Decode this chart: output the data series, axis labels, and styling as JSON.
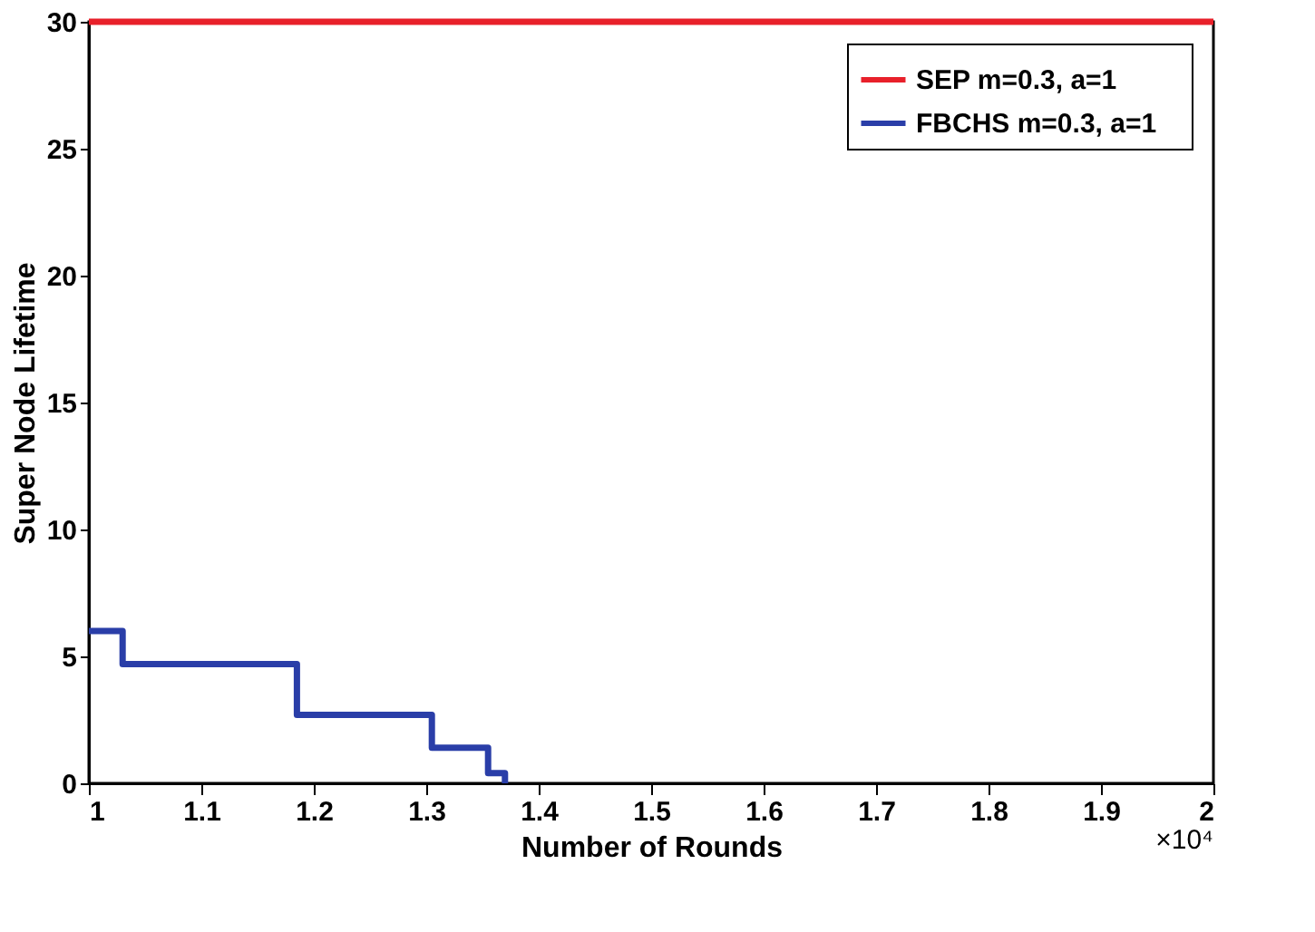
{
  "chart_data": {
    "type": "step",
    "xlabel": "Number of Rounds",
    "ylabel": "Super Node Lifetime",
    "xlim": [
      1,
      2
    ],
    "xticks": [
      1,
      1.1,
      1.2,
      1.3,
      1.4,
      1.5,
      1.6,
      1.7,
      1.8,
      1.9,
      2
    ],
    "ylim": [
      0,
      30
    ],
    "yticks": [
      0,
      5,
      10,
      15,
      20,
      25,
      30
    ],
    "grid": false,
    "legend": "top right",
    "marker": "none",
    "line_style": "solid",
    "annotations": [
      "×10⁴"
    ],
    "series": [
      {
        "name": "SEP    m=0.3, a=1",
        "color": "#e8202a",
        "x": [
          1,
          2
        ],
        "values": [
          30,
          30
        ]
      },
      {
        "name": "FBCHS    m=0.3, a=1",
        "color": "#2a3ea8",
        "x": [
          1,
          1.03,
          1.185,
          1.305,
          1.355,
          1.37
        ],
        "values": [
          6,
          4.7,
          2.7,
          1.4,
          0.4,
          0
        ]
      }
    ]
  }
}
